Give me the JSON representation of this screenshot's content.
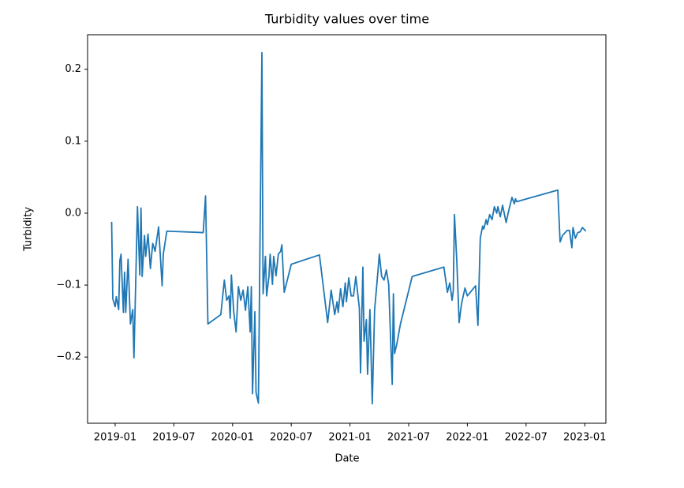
{
  "chart_data": {
    "type": "line",
    "title": "Turbidity values over time",
    "x_label": "Date",
    "y_label": "Turbidity",
    "color": "#1f77b4",
    "x": [
      2018.97,
      2018.98,
      2019.0,
      2019.01,
      2019.03,
      2019.04,
      2019.05,
      2019.07,
      2019.08,
      2019.09,
      2019.11,
      2019.13,
      2019.15,
      2019.16,
      2019.19,
      2019.21,
      2019.22,
      2019.23,
      2019.25,
      2019.26,
      2019.28,
      2019.3,
      2019.32,
      2019.34,
      2019.37,
      2019.4,
      2019.41,
      2019.44,
      2019.75,
      2019.77,
      2019.79,
      2019.9,
      2019.93,
      2019.95,
      2019.97,
      2019.98,
      2019.99,
      2020.01,
      2020.03,
      2020.05,
      2020.07,
      2020.09,
      2020.11,
      2020.13,
      2020.15,
      2020.16,
      2020.17,
      2020.19,
      2020.2,
      2020.22,
      2020.25,
      2020.26,
      2020.28,
      2020.29,
      2020.31,
      2020.32,
      2020.34,
      2020.35,
      2020.37,
      2020.39,
      2020.41,
      2020.42,
      2020.44,
      2020.5,
      2020.74,
      2020.81,
      2020.84,
      2020.87,
      2020.89,
      2020.9,
      2020.92,
      2020.94,
      2020.96,
      2020.97,
      2020.99,
      2021.01,
      2021.03,
      2021.05,
      2021.08,
      2021.09,
      2021.11,
      2021.12,
      2021.14,
      2021.15,
      2021.17,
      2021.19,
      2021.21,
      2021.23,
      2021.25,
      2021.27,
      2021.29,
      2021.31,
      2021.33,
      2021.36,
      2021.37,
      2021.38,
      2021.4,
      2021.43,
      2021.53,
      2021.8,
      2021.83,
      2021.85,
      2021.87,
      2021.88,
      2021.89,
      2021.91,
      2021.93,
      2021.95,
      2021.98,
      2022.0,
      2022.07,
      2022.09,
      2022.11,
      2022.13,
      2022.14,
      2022.16,
      2022.17,
      2022.19,
      2022.21,
      2022.23,
      2022.25,
      2022.26,
      2022.28,
      2022.3,
      2022.33,
      2022.35,
      2022.38,
      2022.4,
      2022.41,
      2022.42,
      2022.77,
      2022.79,
      2022.81,
      2022.85,
      2022.87,
      2022.89,
      2022.9,
      2022.92,
      2022.94,
      2022.96,
      2022.98,
      2023.01
    ],
    "values": [
      -0.012,
      -0.119,
      -0.13,
      -0.116,
      -0.134,
      -0.066,
      -0.057,
      -0.138,
      -0.082,
      -0.138,
      -0.064,
      -0.154,
      -0.134,
      -0.201,
      0.009,
      -0.086,
      0.007,
      -0.088,
      -0.031,
      -0.06,
      -0.029,
      -0.077,
      -0.042,
      -0.053,
      -0.019,
      -0.101,
      -0.057,
      -0.025,
      -0.027,
      0.024,
      -0.154,
      -0.141,
      -0.093,
      -0.121,
      -0.115,
      -0.146,
      -0.086,
      -0.137,
      -0.165,
      -0.102,
      -0.121,
      -0.107,
      -0.135,
      -0.102,
      -0.165,
      -0.102,
      -0.251,
      -0.137,
      -0.249,
      -0.264,
      0.223,
      -0.112,
      -0.06,
      -0.115,
      -0.088,
      -0.057,
      -0.099,
      -0.06,
      -0.087,
      -0.057,
      -0.053,
      -0.044,
      -0.11,
      -0.071,
      -0.058,
      -0.152,
      -0.107,
      -0.141,
      -0.123,
      -0.138,
      -0.105,
      -0.13,
      -0.097,
      -0.123,
      -0.09,
      -0.115,
      -0.115,
      -0.088,
      -0.132,
      -0.222,
      -0.075,
      -0.178,
      -0.148,
      -0.224,
      -0.134,
      -0.265,
      -0.134,
      -0.097,
      -0.057,
      -0.088,
      -0.093,
      -0.079,
      -0.099,
      -0.238,
      -0.112,
      -0.195,
      -0.181,
      -0.154,
      -0.088,
      -0.075,
      -0.11,
      -0.097,
      -0.121,
      -0.108,
      -0.002,
      -0.066,
      -0.152,
      -0.126,
      -0.104,
      -0.115,
      -0.101,
      -0.156,
      -0.035,
      -0.018,
      -0.022,
      -0.009,
      -0.016,
      -0.002,
      -0.009,
      0.009,
      0.0,
      0.009,
      -0.005,
      0.011,
      -0.013,
      0.002,
      0.022,
      0.013,
      0.02,
      0.016,
      0.032,
      -0.04,
      -0.031,
      -0.024,
      -0.024,
      -0.048,
      -0.02,
      -0.035,
      -0.027,
      -0.026,
      -0.02,
      -0.025
    ],
    "xlim": [
      2018.765,
      2023.18
    ],
    "xticks": [
      {
        "value": 2019.0,
        "label": "2019-01"
      },
      {
        "value": 2019.5,
        "label": "2019-07"
      },
      {
        "value": 2020.0,
        "label": "2020-01"
      },
      {
        "value": 2020.5,
        "label": "2020-07"
      },
      {
        "value": 2021.0,
        "label": "2021-01"
      },
      {
        "value": 2021.5,
        "label": "2021-07"
      },
      {
        "value": 2022.0,
        "label": "2022-01"
      },
      {
        "value": 2022.5,
        "label": "2022-07"
      },
      {
        "value": 2023.0,
        "label": "2023-01"
      }
    ],
    "ylim": [
      -0.292,
      0.248
    ],
    "yticks": [
      {
        "value": -0.2,
        "label": "−0.2"
      },
      {
        "value": -0.1,
        "label": "−0.1"
      },
      {
        "value": 0,
        "label": "0.0"
      },
      0.1,
      0.2
    ],
    "grid": false
  }
}
